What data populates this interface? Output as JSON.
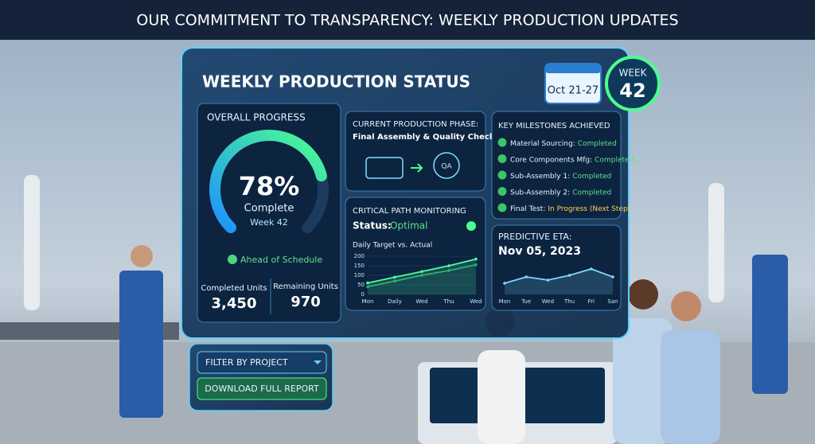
{
  "header": {
    "title": "OUR COMMITMENT TO TRANSPARENCY: WEEKLY PRODUCTION UPDATES"
  },
  "panel": {
    "title": "WEEKLY PRODUCTION STATUS",
    "date": "Oct 21-27",
    "week_label": "WEEK",
    "week_number": "42"
  },
  "progress": {
    "title": "OVERALL PROGRESS",
    "value": 78,
    "value_label": "78%",
    "status": "Complete",
    "week": "Week 42",
    "badge": "Ahead of Schedule",
    "completed_label": "Completed Units",
    "completed": "3,450",
    "remaining_label": "Remaining Units",
    "remaining": "970"
  },
  "phase": {
    "title": "CURRENT PRODUCTION PHASE:",
    "name": "Final Assembly & Quality Check",
    "icon": "QA"
  },
  "milestones": {
    "title": "KEY MILESTONES ACHIEVED",
    "items": [
      {
        "label": "Material Sourcing:",
        "status": "Completed"
      },
      {
        "label": "Core Components Mfg:",
        "status": "Completed"
      },
      {
        "label": "Sub-Assembly 1:",
        "status": "Completed"
      },
      {
        "label": "Sub-Assembly 2:",
        "status": "Completed"
      },
      {
        "label": "Final Test:",
        "status": "In Progress (Next Step)"
      }
    ]
  },
  "critical": {
    "title": "CRITICAL PATH MONITORING",
    "status_label": "Status:",
    "status": "Optimal",
    "chart_data": {
      "type": "line",
      "title": "Daily Target vs. Actual",
      "categories": [
        "Mon",
        "Daily",
        "Wed",
        "Thu",
        "Wed"
      ],
      "ylim": [
        0,
        200
      ],
      "yticks": [
        0,
        50,
        100,
        150,
        200
      ],
      "series": [
        {
          "color": "#2e9e66",
          "values": [
            40,
            70,
            100,
            125,
            155
          ]
        },
        {
          "color": "#4dffa0",
          "values": [
            60,
            90,
            120,
            150,
            185
          ]
        }
      ]
    }
  },
  "eta": {
    "title": "PREDICTIVE ETA:",
    "date": "Nov 05, 2023",
    "chart_data": {
      "type": "line",
      "categories": [
        "Mon",
        "Tue",
        "Wed",
        "Thu",
        "Fri",
        "San"
      ],
      "ylim": [
        0,
        100
      ],
      "series": [
        {
          "color": "#7fd8ff",
          "values": [
            35,
            55,
            45,
            60,
            80,
            55
          ]
        }
      ]
    }
  },
  "buttons": {
    "filter": "FILTER BY PROJECT",
    "download": "DOWNLOAD FULL REPORT"
  }
}
